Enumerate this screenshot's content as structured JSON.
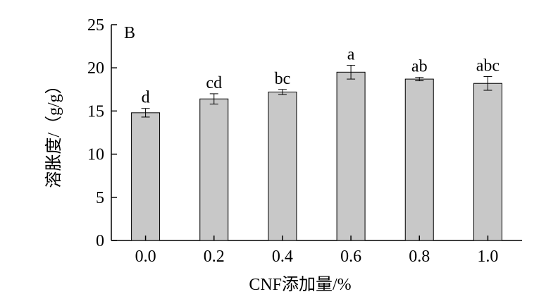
{
  "chart_data": {
    "type": "bar",
    "panel_label": "B",
    "categories": [
      "0.0",
      "0.2",
      "0.4",
      "0.6",
      "0.8",
      "1.0"
    ],
    "values": [
      14.8,
      16.4,
      17.2,
      19.5,
      18.7,
      18.2
    ],
    "errors": [
      0.5,
      0.6,
      0.3,
      0.8,
      0.2,
      0.8
    ],
    "significance": [
      "d",
      "cd",
      "bc",
      "a",
      "ab",
      "abc"
    ],
    "xlabel": "CNF添加量/%",
    "ylabel": "溶胀度/（g/g）",
    "ylim": [
      0,
      25
    ],
    "yticks": [
      0,
      5,
      10,
      15,
      20,
      25
    ],
    "bar_color": "#c8c8c8",
    "grid": false,
    "legend": "none"
  }
}
